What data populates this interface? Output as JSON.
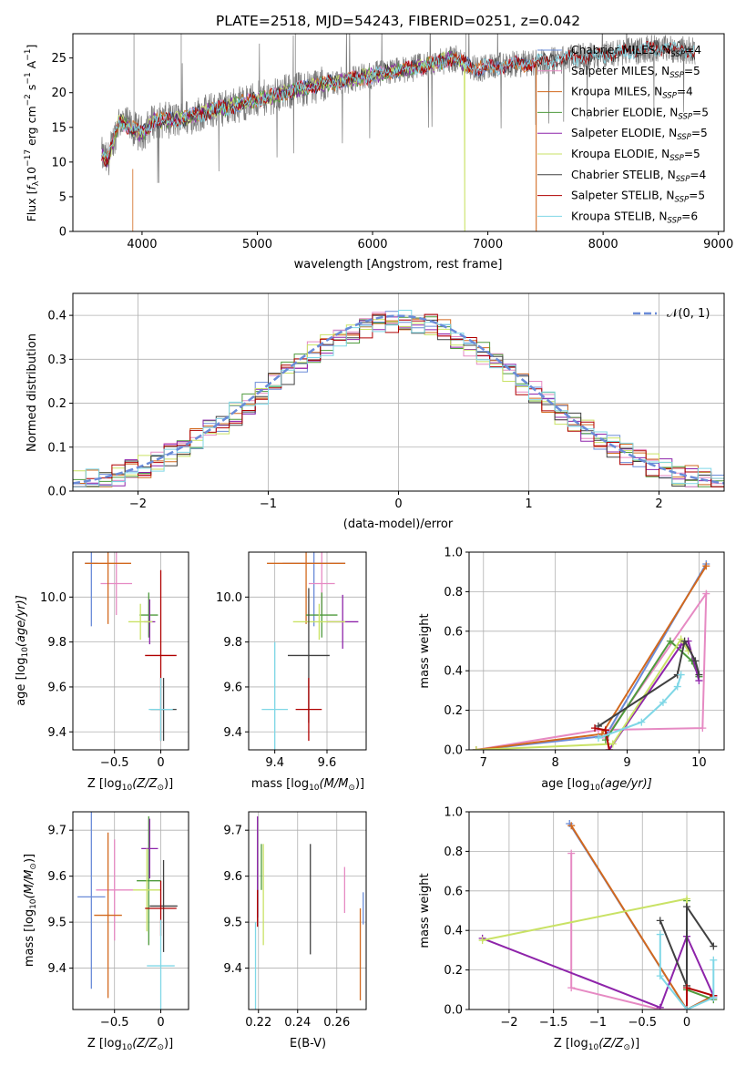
{
  "colors": {
    "chabrier_miles": "#6a8bd8",
    "salpeter_miles": "#e68ac3",
    "kroupa_miles": "#d2691e",
    "chabrier_elodie": "#4e9a3c",
    "salpeter_elodie": "#8e24aa",
    "kroupa_elodie": "#c9e265",
    "chabrier_stelib": "#404040",
    "salpeter_stelib": "#b00000",
    "kroupa_stelib": "#7fd7e6",
    "spectrum": "#7a7a7a",
    "grid": "#b0b0b0",
    "normal": "#6a8bd8"
  },
  "chart_data": [
    {
      "id": "spectrum",
      "type": "line",
      "title": "PLATE=2518, MJD=54243, FIBERID=0251, z=0.042",
      "xlabel": "wavelength [Angstrom, rest frame]",
      "ylabel_main": "Flux [",
      "ylabel_f": "f",
      "ylabel_lambda": "λ",
      "ylabel_rest": "10",
      "ylabel_exp1": "−17",
      "ylabel_unit": " erg cm",
      "ylabel_exp2": "−2",
      "ylabel_s": " s",
      "ylabel_exp3": "−1",
      "ylabel_A": " A",
      "ylabel_exp4": "−1",
      "ylabel_close": "]",
      "xlim": [
        3400,
        9050
      ],
      "ylim": [
        0,
        28.5
      ],
      "xticks": [
        4000,
        5000,
        6000,
        7000,
        8000,
        9000
      ],
      "yticks": [
        0,
        5,
        10,
        15,
        20,
        25
      ],
      "legend_position": "upper-right",
      "grid": false,
      "series": [
        {
          "name": "Chabrier MILES, N",
          "sub": "SSP",
          "suffix": "=4",
          "range": [
            3650,
            7420
          ]
        },
        {
          "name": "Salpeter MILES, N",
          "sub": "SSP",
          "suffix": "=5",
          "range": [
            3650,
            7420
          ]
        },
        {
          "name": "Kroupa MILES, N",
          "sub": "SSP",
          "suffix": "=4",
          "range": [
            3650,
            7420
          ]
        },
        {
          "name": "Chabrier ELODIE, N",
          "sub": "SSP",
          "suffix": "=5",
          "range": [
            3650,
            6800
          ]
        },
        {
          "name": "Salpeter ELODIE, N",
          "sub": "SSP",
          "suffix": "=5",
          "range": [
            3650,
            6800
          ]
        },
        {
          "name": "Kroupa ELODIE, N",
          "sub": "SSP",
          "suffix": "=5",
          "range": [
            3650,
            6800
          ]
        },
        {
          "name": "Chabrier STELIB, N",
          "sub": "SSP",
          "suffix": "=4",
          "range": [
            3650,
            8800
          ]
        },
        {
          "name": "Salpeter STELIB, N",
          "sub": "SSP",
          "suffix": "=5",
          "range": [
            3650,
            8800
          ]
        },
        {
          "name": "Kroupa STELIB, N",
          "sub": "SSP",
          "suffix": "=6",
          "range": [
            3650,
            8800
          ]
        }
      ],
      "continuum": {
        "x": [
          3650,
          3700,
          3800,
          3900,
          4000,
          4100,
          4300,
          4500,
          5000,
          5500,
          6000,
          6500,
          6700,
          6900,
          7500,
          8000,
          8500,
          8800
        ],
        "y": [
          11,
          10,
          16,
          15,
          14,
          16,
          16,
          17,
          19,
          21,
          22.5,
          24,
          25,
          23.5,
          24.5,
          25.5,
          26.5,
          26
        ]
      }
    },
    {
      "id": "residuals",
      "type": "histogram",
      "xlabel": "(data-model)/error",
      "ylabel": "Normed distribution",
      "xlim": [
        -2.5,
        2.5
      ],
      "ylim": [
        0,
        0.45
      ],
      "xticks": [
        -2,
        -1,
        0,
        1,
        2
      ],
      "yticks": [
        0.0,
        0.1,
        0.2,
        0.3,
        0.4
      ],
      "grid": true,
      "legend_position": "upper-right",
      "legend": "𝒩(0, 1)",
      "bins": 50
    },
    {
      "id": "age-vs-Z",
      "type": "errorbar",
      "xlabel": "Z [log",
      "xlabel_sub": "10",
      "xlabel_rest": "(Z/Z",
      "xlabel_sun": "⊙",
      "xlabel_close": ")]",
      "ylabel": "age  [log",
      "ylabel_sub": "10",
      "ylabel_rest": "(age/yr)]",
      "xlim": [
        -0.95,
        0.3
      ],
      "ylim": [
        9.32,
        10.2
      ],
      "xticks": [
        -0.5,
        0.0
      ],
      "yticks": [
        9.4,
        9.6,
        9.8,
        10.0
      ],
      "points": [
        {
          "series": 0,
          "x": -0.75,
          "y": 10.15,
          "xerr": 0.07,
          "yerr": 0.28
        },
        {
          "series": 1,
          "x": -0.48,
          "y": 10.06,
          "xerr": 0.17,
          "yerr": 0.14
        },
        {
          "series": 2,
          "x": -0.57,
          "y": 10.15,
          "xerr": 0.25,
          "yerr": 0.27
        },
        {
          "series": 3,
          "x": -0.13,
          "y": 9.92,
          "xerr": 0.1,
          "yerr": 0.1
        },
        {
          "series": 4,
          "x": -0.12,
          "y": 9.89,
          "xerr": 0.06,
          "yerr": 0.1
        },
        {
          "series": 5,
          "x": -0.22,
          "y": 9.89,
          "xerr": 0.13,
          "yerr": 0.08
        },
        {
          "series": 6,
          "x": 0.03,
          "y": 9.5,
          "xerr": 0.14,
          "yerr": 0.14
        },
        {
          "series": 7,
          "x": 0.0,
          "y": 9.74,
          "xerr": 0.17,
          "yerr": 0.38
        },
        {
          "series": 8,
          "x": 0.0,
          "y": 9.5,
          "xerr": 0.13,
          "yerr": 0.14
        }
      ]
    },
    {
      "id": "age-vs-mass",
      "type": "errorbar",
      "xlabel": "mass [log",
      "xlabel_sub": "10",
      "xlabel_rest": "(M/M",
      "xlabel_sun": "⊙",
      "xlabel_close": ")]",
      "xlim": [
        9.3,
        9.75
      ],
      "ylim": [
        9.32,
        10.2
      ],
      "xticks": [
        9.4,
        9.6
      ],
      "yticks": [
        9.4,
        9.6,
        9.8,
        10.0
      ],
      "points": [
        {
          "series": 0,
          "x": 9.55,
          "y": 10.15,
          "xerr": 0.12,
          "yerr": 0.28
        },
        {
          "series": 1,
          "x": 9.58,
          "y": 10.06,
          "xerr": 0.05,
          "yerr": 0.14
        },
        {
          "series": 2,
          "x": 9.52,
          "y": 10.15,
          "xerr": 0.15,
          "yerr": 0.27
        },
        {
          "series": 3,
          "x": 9.58,
          "y": 9.92,
          "xerr": 0.06,
          "yerr": 0.1
        },
        {
          "series": 4,
          "x": 9.66,
          "y": 9.89,
          "xerr": 0.06,
          "yerr": 0.12
        },
        {
          "series": 5,
          "x": 9.57,
          "y": 9.89,
          "xerr": 0.1,
          "yerr": 0.08
        },
        {
          "series": 6,
          "x": 9.53,
          "y": 9.74,
          "xerr": 0.08,
          "yerr": 0.3
        },
        {
          "series": 7,
          "x": 9.53,
          "y": 9.5,
          "xerr": 0.05,
          "yerr": 0.14
        },
        {
          "series": 8,
          "x": 9.4,
          "y": 9.5,
          "xerr": 0.05,
          "yerr": 0.3
        }
      ]
    },
    {
      "id": "mw-vs-age",
      "type": "line",
      "xlabel": "age  [log",
      "xlabel_sub": "10",
      "xlabel_rest": "(age/yr)]",
      "ylabel": "mass weight",
      "xlim": [
        6.8,
        10.35
      ],
      "ylim": [
        0,
        1.0
      ],
      "xticks": [
        7,
        8,
        9,
        10
      ],
      "yticks": [
        0.0,
        0.2,
        0.4,
        0.6,
        0.8,
        1.0
      ],
      "grid": true,
      "lines": [
        {
          "series": 0,
          "x": [
            6.9,
            8.7,
            10.1
          ],
          "y": [
            0.0,
            0.07,
            0.94
          ]
        },
        {
          "series": 1,
          "x": [
            6.9,
            8.6,
            10.05,
            10.1,
            8.7
          ],
          "y": [
            0.0,
            0.1,
            0.11,
            0.79,
            0.06
          ]
        },
        {
          "series": 2,
          "x": [
            6.9,
            8.65,
            10.1
          ],
          "y": [
            0.0,
            0.08,
            0.93
          ]
        },
        {
          "series": 3,
          "x": [
            8.7,
            9.6,
            9.9,
            10.0
          ],
          "y": [
            0.05,
            0.55,
            0.45,
            0.37
          ]
        },
        {
          "series": 4,
          "x": [
            8.75,
            9.75,
            9.85,
            10.0
          ],
          "y": [
            0.0,
            0.53,
            0.55,
            0.35
          ]
        },
        {
          "series": 5,
          "x": [
            6.9,
            8.8,
            9.75,
            9.85
          ],
          "y": [
            0.0,
            0.03,
            0.56,
            0.5
          ]
        },
        {
          "series": 6,
          "x": [
            8.6,
            9.7,
            9.8,
            9.95,
            10.0
          ],
          "y": [
            0.12,
            0.38,
            0.55,
            0.45,
            0.38
          ]
        },
        {
          "series": 7,
          "x": [
            8.55,
            8.7,
            8.75
          ],
          "y": [
            0.11,
            0.1,
            0.0
          ]
        },
        {
          "series": 8,
          "x": [
            8.6,
            9.2,
            9.5,
            9.7,
            9.75
          ],
          "y": [
            0.06,
            0.14,
            0.24,
            0.32,
            0.38
          ]
        }
      ]
    },
    {
      "id": "mass-vs-Z",
      "type": "errorbar",
      "xlabel": "Z [log",
      "xlabel_sub": "10",
      "xlabel_rest": "(Z/Z",
      "xlabel_sun": "⊙",
      "xlabel_close": ")]",
      "ylabel": "mass [log",
      "ylabel_sub": "10",
      "ylabel_rest": "(M/M",
      "ylabel_sun": "⊙",
      "ylabel_close": ")]",
      "xlim": [
        -0.95,
        0.3
      ],
      "ylim": [
        9.31,
        9.74
      ],
      "xticks": [
        -0.5,
        0.0
      ],
      "yticks": [
        9.4,
        9.5,
        9.6,
        9.7
      ],
      "points": [
        {
          "series": 0,
          "x": -0.75,
          "y": 9.555,
          "xerr": 0.15,
          "yerr": 0.2
        },
        {
          "series": 1,
          "x": -0.5,
          "y": 9.57,
          "xerr": 0.2,
          "yerr": 0.11
        },
        {
          "series": 2,
          "x": -0.57,
          "y": 9.515,
          "xerr": 0.15,
          "yerr": 0.18
        },
        {
          "series": 3,
          "x": -0.13,
          "y": 9.59,
          "xerr": 0.13,
          "yerr": 0.14
        },
        {
          "series": 4,
          "x": -0.12,
          "y": 9.66,
          "xerr": 0.09,
          "yerr": 0.065
        },
        {
          "series": 5,
          "x": -0.15,
          "y": 9.57,
          "xerr": 0.15,
          "yerr": 0.09
        },
        {
          "series": 6,
          "x": 0.03,
          "y": 9.535,
          "xerr": 0.15,
          "yerr": 0.1
        },
        {
          "series": 7,
          "x": 0.0,
          "y": 9.53,
          "xerr": 0.17,
          "yerr": 0.06
        },
        {
          "series": 8,
          "x": 0.0,
          "y": 9.405,
          "xerr": 0.15,
          "yerr": 0.1
        }
      ]
    },
    {
      "id": "mass-vs-ebv",
      "type": "errorbar",
      "xlabel": "E(B-V)",
      "xlim": [
        0.215,
        0.275
      ],
      "ylim": [
        9.31,
        9.74
      ],
      "xticks": [
        0.22,
        0.24,
        0.26
      ],
      "yticks": [
        9.4,
        9.5,
        9.6,
        9.7
      ],
      "points": [
        {
          "series": 0,
          "x": 0.2735,
          "y": 9.53,
          "xerr": 0.0,
          "yerr": 0.035
        },
        {
          "series": 1,
          "x": 0.264,
          "y": 9.57,
          "xerr": 0.0,
          "yerr": 0.05
        },
        {
          "series": 2,
          "x": 0.272,
          "y": 9.43,
          "xerr": 0.0,
          "yerr": 0.1
        },
        {
          "series": 3,
          "x": 0.2215,
          "y": 9.62,
          "xerr": 0.0,
          "yerr": 0.05
        },
        {
          "series": 4,
          "x": 0.2195,
          "y": 9.62,
          "xerr": 0.0,
          "yerr": 0.11
        },
        {
          "series": 5,
          "x": 0.2225,
          "y": 9.56,
          "xerr": 0.0,
          "yerr": 0.11
        },
        {
          "series": 6,
          "x": 0.2465,
          "y": 9.55,
          "xerr": 0.0,
          "yerr": 0.12
        },
        {
          "series": 7,
          "x": 0.2195,
          "y": 9.53,
          "xerr": 0.0,
          "yerr": 0.04
        },
        {
          "series": 8,
          "x": 0.2185,
          "y": 9.4,
          "xerr": 0.0,
          "yerr": 0.1
        }
      ]
    },
    {
      "id": "mw-vs-Z",
      "type": "line",
      "xlabel": "Z [log",
      "xlabel_sub": "10",
      "xlabel_rest": "(Z/Z",
      "xlabel_sun": "⊙",
      "xlabel_close": ")]",
      "ylabel": "mass weight",
      "xlim": [
        -2.45,
        0.42
      ],
      "ylim": [
        0,
        1.0
      ],
      "xticks": [
        -2.0,
        -1.5,
        -1.0,
        -0.5,
        0.0
      ],
      "yticks": [
        0.0,
        0.2,
        0.4,
        0.6,
        0.8,
        1.0
      ],
      "grid": true,
      "lines": [
        {
          "series": 0,
          "x": [
            -1.32,
            0.0,
            0.3
          ],
          "y": [
            0.94,
            0.0,
            0.07
          ]
        },
        {
          "series": 1,
          "x": [
            -1.3,
            -1.3,
            -0.3,
            0.0
          ],
          "y": [
            0.79,
            0.11,
            0.0,
            0.0
          ]
        },
        {
          "series": 2,
          "x": [
            -1.3,
            0.0,
            0.3
          ],
          "y": [
            0.93,
            0.0,
            0.07
          ]
        },
        {
          "series": 3,
          "x": [
            0.0,
            0.0,
            0.3
          ],
          "y": [
            0.55,
            0.1,
            0.05
          ]
        },
        {
          "series": 4,
          "x": [
            -2.3,
            -0.3,
            0.0,
            0.3,
            0.3
          ],
          "y": [
            0.36,
            0.01,
            0.37,
            0.07,
            0.06
          ]
        },
        {
          "series": 5,
          "x": [
            -2.3,
            0.0,
            0.0
          ],
          "y": [
            0.35,
            0.56,
            0.0
          ]
        },
        {
          "series": 6,
          "x": [
            -0.3,
            0.0,
            0.0,
            0.3
          ],
          "y": [
            0.45,
            0.12,
            0.52,
            0.32
          ]
        },
        {
          "series": 7,
          "x": [
            0.0,
            0.0,
            0.3
          ],
          "y": [
            0.0,
            0.11,
            0.07
          ]
        },
        {
          "series": 8,
          "x": [
            -0.3,
            -0.3,
            0.0,
            0.3,
            0.3
          ],
          "y": [
            0.38,
            0.17,
            0.0,
            0.06,
            0.25
          ]
        }
      ]
    }
  ]
}
